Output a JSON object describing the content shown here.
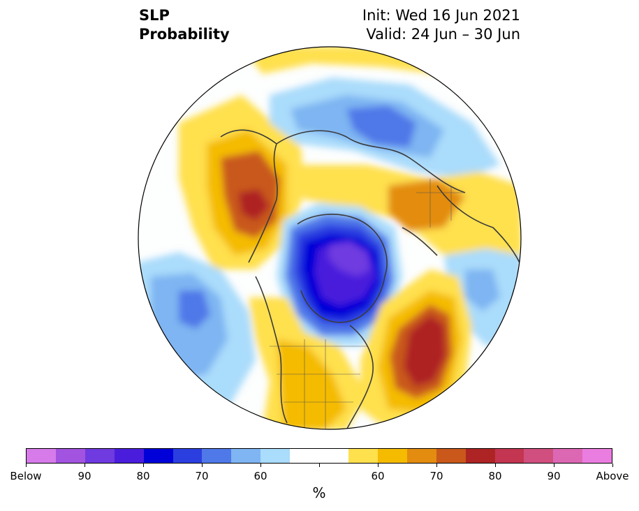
{
  "title": {
    "left_line1": "SLP",
    "left_line2": "Probability",
    "right_line1": "Init: Wed 16 Jun 2021",
    "right_line2": "Valid: 24 Jun – 30 Jun"
  },
  "colorbar": {
    "colors": [
      "#d67be9",
      "#a253e0",
      "#6f3ae0",
      "#4a1ddc",
      "#0000d8",
      "#2b3ee0",
      "#4f78e8",
      "#7eb5f2",
      "#aadcfb",
      "#ffffff",
      "#ffffff",
      "#ffe04d",
      "#f4bb00",
      "#e38c10",
      "#c9581a",
      "#ae2424",
      "#c33550",
      "#d14f7f",
      "#dc68b4",
      "#ea7de0"
    ],
    "tick_labels": [
      "Below",
      "90",
      "80",
      "70",
      "60",
      "",
      "60",
      "70",
      "80",
      "90",
      "Above"
    ],
    "unit": "%"
  },
  "map": {
    "projection": "north-polar-stereographic",
    "field": "SLP probability"
  }
}
